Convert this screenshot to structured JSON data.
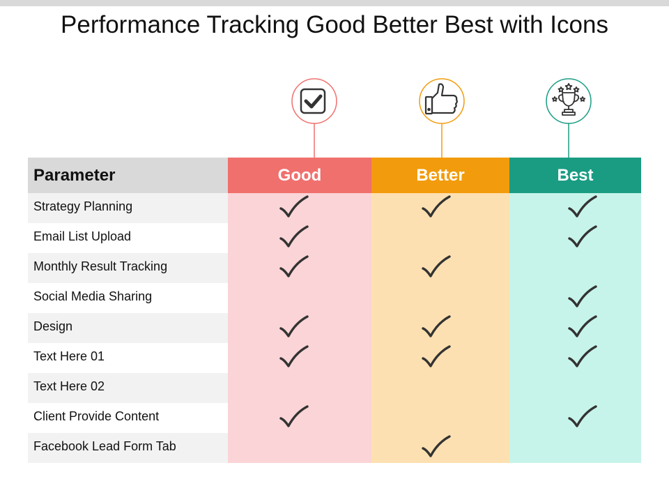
{
  "title": "Performance Tracking Good Better Best with Icons",
  "colors": {
    "good": "#f0706e",
    "good_bg": "#fad4d6",
    "better": "#f29b0c",
    "better_bg": "#fde0b1",
    "best": "#1a9c83",
    "best_bg": "#c7f4ea",
    "header_bg": "#d9d9d9"
  },
  "icons": [
    {
      "name": "checkbox-icon",
      "tier": "good"
    },
    {
      "name": "thumbs-up-icon",
      "tier": "better"
    },
    {
      "name": "trophy-icon",
      "tier": "best"
    }
  ],
  "table": {
    "header": {
      "parameter": "Parameter",
      "good": "Good",
      "better": "Better",
      "best": "Best"
    },
    "rows": [
      {
        "label": "Strategy Planning",
        "good": true,
        "better": true,
        "best": true
      },
      {
        "label": "Email List Upload",
        "good": true,
        "better": false,
        "best": true
      },
      {
        "label": "Monthly  Result Tracking",
        "good": true,
        "better": true,
        "best": false
      },
      {
        "label": "Social Media Sharing",
        "good": false,
        "better": false,
        "best": true
      },
      {
        "label": "Design",
        "good": true,
        "better": true,
        "best": true
      },
      {
        "label": "Text Here 01",
        "good": true,
        "better": true,
        "best": true
      },
      {
        "label": "Text Here 02",
        "good": false,
        "better": false,
        "best": false
      },
      {
        "label": "Client Provide Content",
        "good": true,
        "better": false,
        "best": true
      },
      {
        "label": "Facebook Lead Form Tab",
        "good": false,
        "better": true,
        "best": false
      }
    ]
  }
}
